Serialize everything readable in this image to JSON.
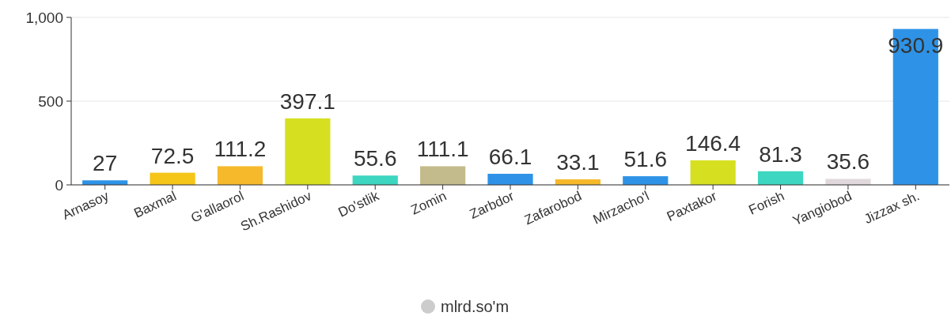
{
  "chart_data": {
    "type": "bar",
    "categories": [
      "Arnasoy",
      "Baxmal",
      "G'allaorol",
      "Sh.Rashidov",
      "Do'stlik",
      "Zomin",
      "Zarbdor",
      "Zafarobod",
      "Mirzacho'l",
      "Paxtakor",
      "Forish",
      "Yangiobod",
      "Jizzax sh."
    ],
    "series": [
      {
        "name": "mlrd.so'm",
        "color": "#cccccc",
        "colors": [
          "#2e93e6",
          "#f5c518",
          "#f6b92b",
          "#d6e021",
          "#3dd6c0",
          "#c4bb8c",
          "#2e93e6",
          "#f6b92b",
          "#2e93e6",
          "#d6e021",
          "#3dd6c0",
          "#e0d8dc",
          "#2e93e6"
        ],
        "values": [
          27,
          72.5,
          111.2,
          397.1,
          55.6,
          111.1,
          66.1,
          33.1,
          51.6,
          146.4,
          81.3,
          35.6,
          930.9
        ]
      }
    ],
    "ylim": [
      0,
      1000
    ],
    "yticks": [
      0,
      500,
      {
        "value": 1000,
        "label": "1,000"
      }
    ],
    "grid": "y",
    "legend": "bottom",
    "data_labels": true
  }
}
